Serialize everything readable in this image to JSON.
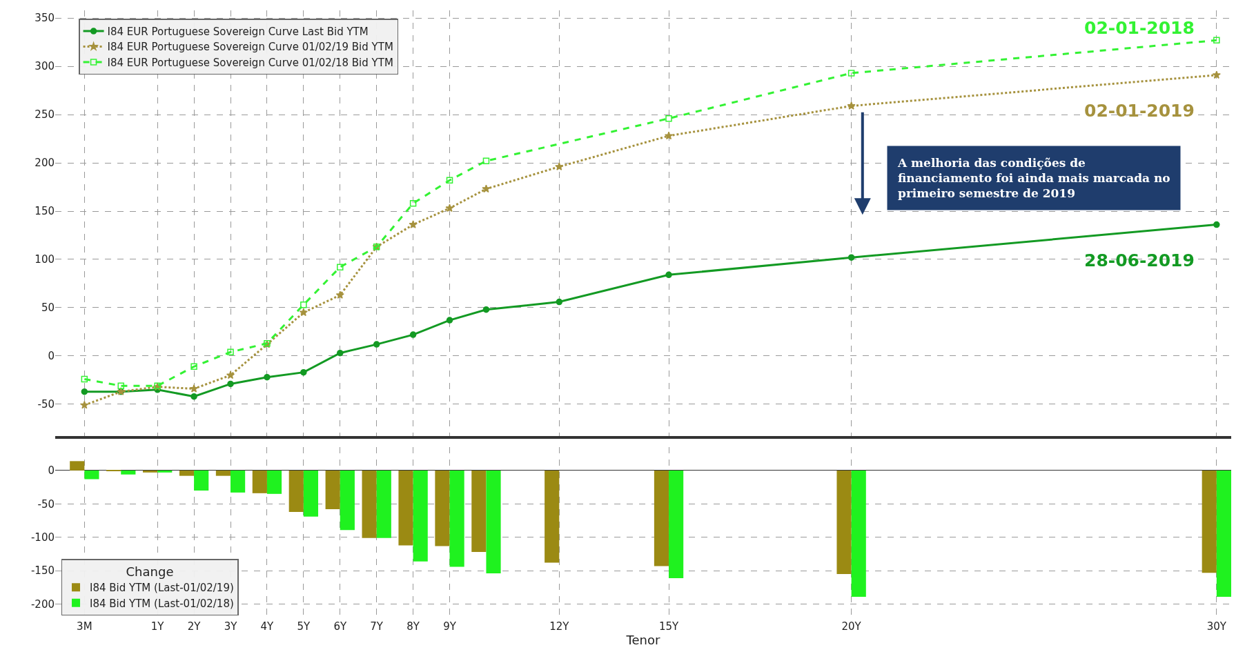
{
  "chart_data": [
    {
      "type": "line",
      "categories": [
        "3M",
        null,
        "1Y",
        "2Y",
        "3Y",
        "4Y",
        "5Y",
        "6Y",
        "7Y",
        "8Y",
        "9Y",
        null,
        null,
        "12Y",
        null,
        null,
        "15Y",
        null,
        null,
        null,
        null,
        "20Y",
        null,
        null,
        null,
        null,
        null,
        null,
        null,
        null,
        null,
        "30Y"
      ],
      "series": [
        {
          "name": "I84 EUR Portuguese Sovereign Curve Last Bid YTM",
          "color": "#139a23",
          "marker": "circle",
          "line_style": "solid",
          "values": [
            -37,
            -37,
            -35,
            -42,
            -29,
            -22,
            -17,
            3,
            12,
            22,
            37,
            48,
            null,
            56,
            null,
            null,
            84,
            null,
            null,
            null,
            null,
            102,
            null,
            null,
            null,
            null,
            null,
            null,
            null,
            null,
            null,
            136
          ]
        },
        {
          "name": "I84 EUR Portuguese Sovereign Curve 01/02/19 Bid YTM",
          "color": "#a6923e",
          "marker": "star",
          "line_style": "dotted",
          "values": [
            -51,
            -37,
            -32,
            -34,
            -20,
            12,
            45,
            63,
            113,
            136,
            153,
            173,
            null,
            196,
            null,
            null,
            228,
            null,
            null,
            null,
            null,
            259,
            null,
            null,
            null,
            null,
            null,
            null,
            null,
            null,
            null,
            291
          ]
        },
        {
          "name": "I84 EUR Portuguese Sovereign Curve 01/02/18 Bid YTM",
          "color": "#33f233",
          "marker": "square",
          "line_style": "dashed",
          "values": [
            -24,
            -31,
            -31,
            -11,
            4,
            13,
            53,
            92,
            113,
            158,
            182,
            202,
            null,
            null,
            null,
            null,
            246,
            null,
            null,
            null,
            null,
            293,
            null,
            null,
            null,
            null,
            null,
            null,
            null,
            null,
            null,
            327
          ]
        }
      ],
      "ylim": [
        -83,
        358
      ],
      "yticks": [
        -50,
        0,
        50,
        100,
        150,
        200,
        250,
        300,
        350
      ],
      "grid": true,
      "legend": "top left",
      "tick_labels": "y",
      "annotations": [
        {
          "text": "02-01-2018",
          "x": "30Y",
          "y": 327
        },
        {
          "text": "02-01-2019",
          "x": "30Y",
          "y": 291
        },
        {
          "text": "28-06-2019",
          "x": "30Y",
          "y": 136
        },
        "A melhoria das condições de financiamento foi ainda mais marcada no primeiro semestre de 2019"
      ]
    },
    {
      "type": "bar",
      "categories": [
        "3M",
        null,
        "1Y",
        "2Y",
        "3Y",
        "4Y",
        "5Y",
        "6Y",
        "7Y",
        "8Y",
        "9Y",
        null,
        null,
        "12Y",
        null,
        null,
        "15Y",
        null,
        null,
        null,
        null,
        "20Y",
        null,
        null,
        null,
        null,
        null,
        null,
        null,
        null,
        null,
        "30Y"
      ],
      "series": [
        {
          "name": "I84 Bid YTM (Last-01/02/19)",
          "color": "#9b8a13",
          "values": [
            14,
            -1,
            -3,
            -8,
            -8,
            -34,
            -62,
            -58,
            -101,
            -112,
            -113,
            -122,
            null,
            -138,
            null,
            null,
            -143,
            null,
            null,
            null,
            null,
            -155,
            null,
            null,
            null,
            null,
            null,
            null,
            null,
            null,
            null,
            -153
          ]
        },
        {
          "name": "I84 Bid YTM (Last-01/02/18)",
          "color": "#1ff21f",
          "values": [
            -13,
            -6,
            -3,
            -30,
            -33,
            -35,
            -69,
            -89,
            -101,
            -136,
            -144,
            -154,
            null,
            null,
            null,
            null,
            -161,
            null,
            null,
            null,
            null,
            -189,
            null,
            null,
            null,
            null,
            null,
            null,
            null,
            null,
            null,
            -189
          ]
        }
      ],
      "ylim": [
        -222,
        35
      ],
      "yticks": [
        -200,
        -150,
        -100,
        -50,
        0
      ],
      "grid": true,
      "legend": "bottom left",
      "legend_title": "Change",
      "xlabel": "Tenor"
    }
  ]
}
